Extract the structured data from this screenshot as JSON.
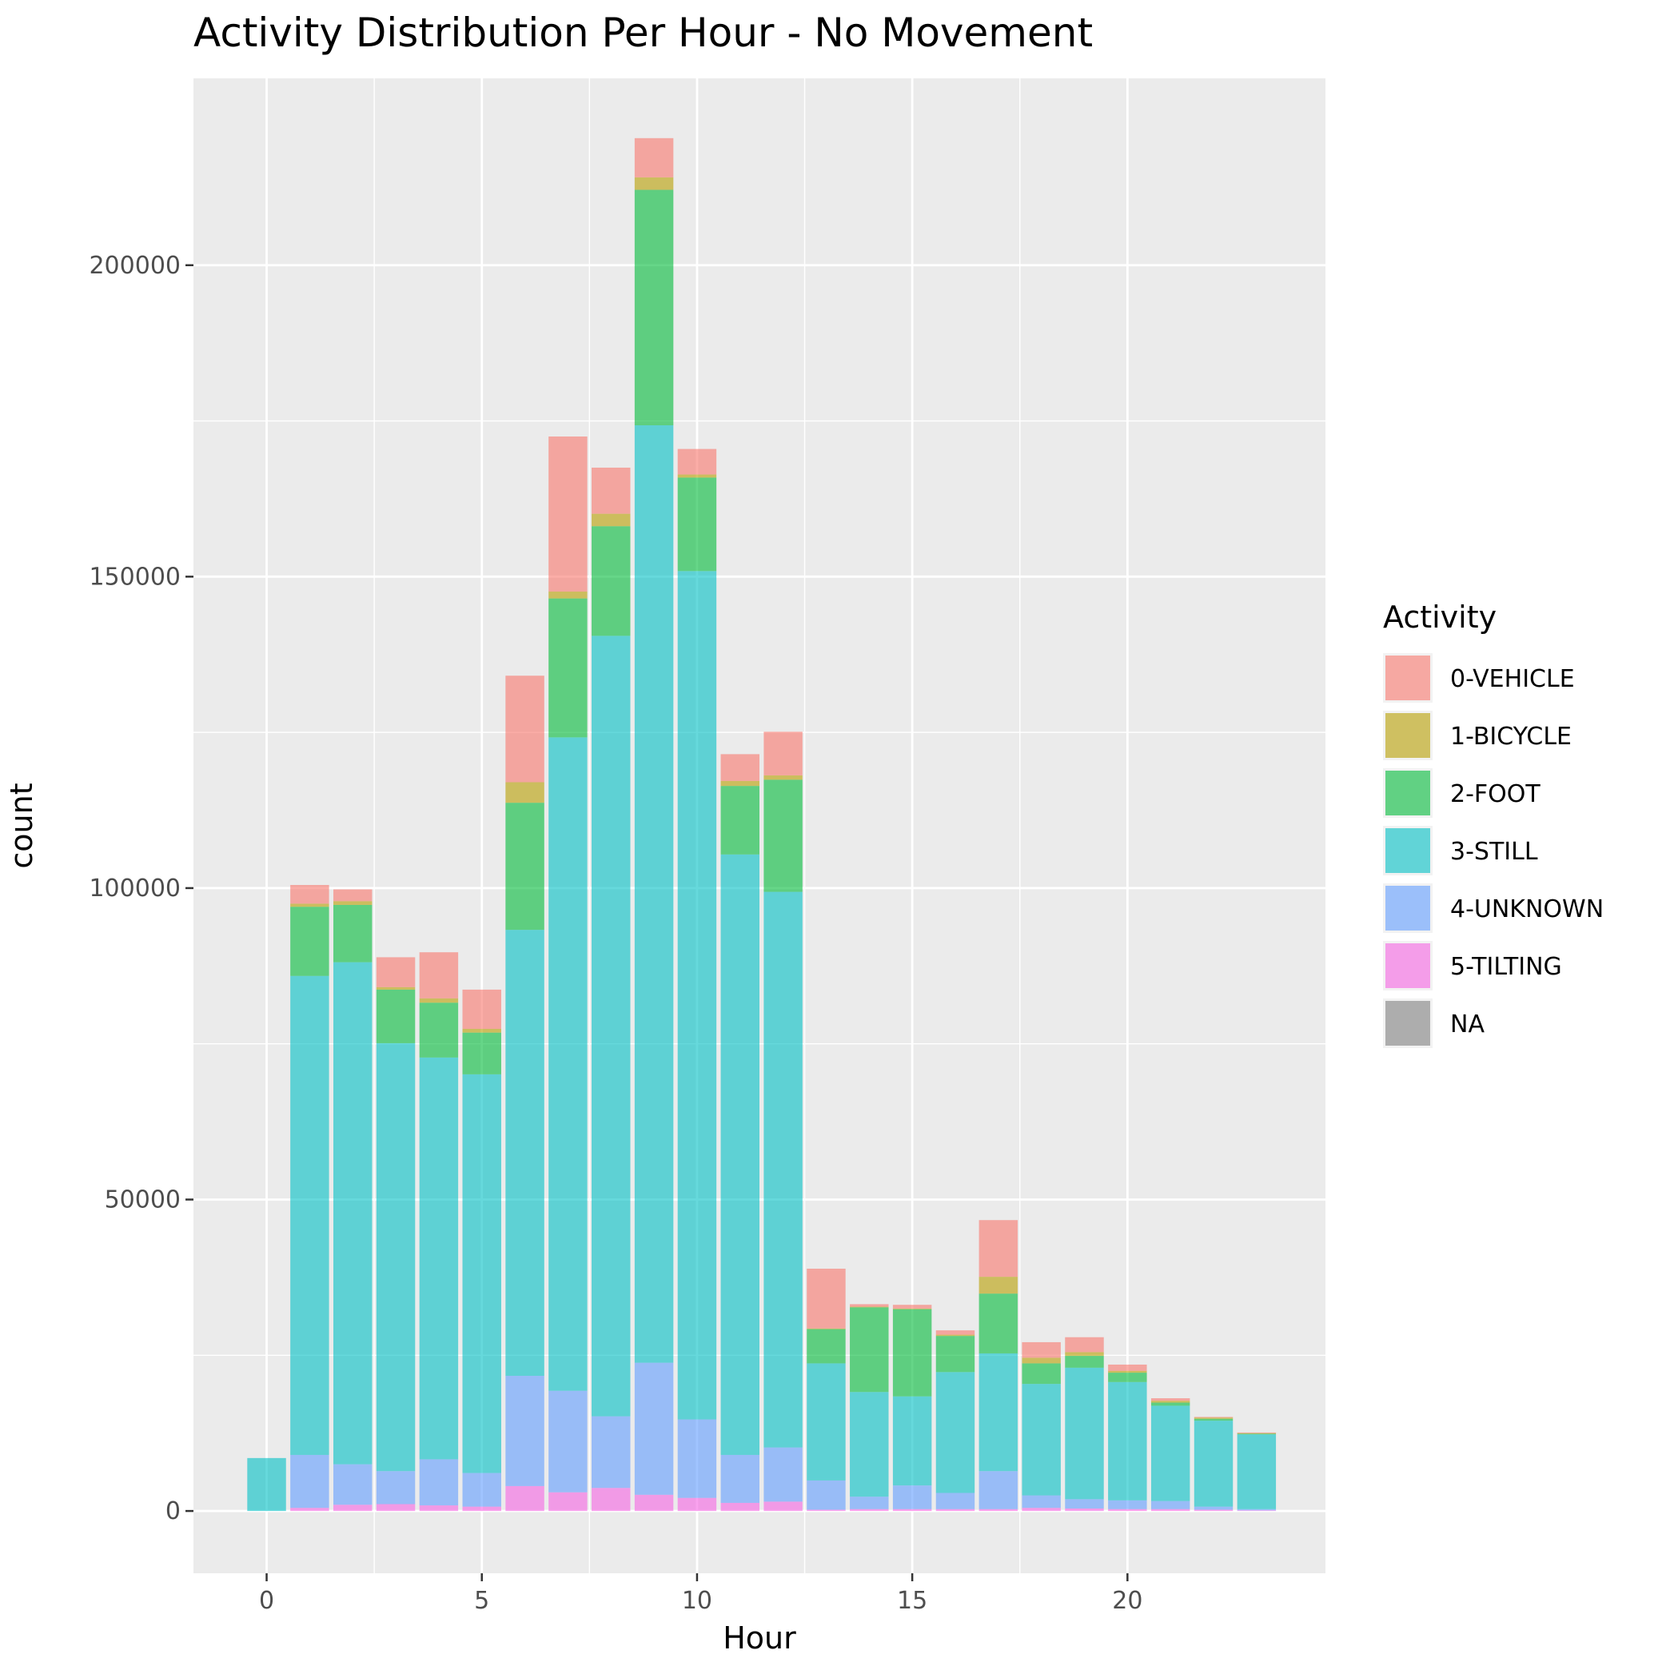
{
  "chart_data": {
    "type": "bar",
    "stacked": true,
    "title": "Activity Distribution Per Hour - No Movement",
    "xlabel": "Hour",
    "ylabel": "count",
    "xlim": [
      -1.7,
      24.6
    ],
    "ylim": [
      -10000,
      230000
    ],
    "xticks": [
      0,
      5,
      10,
      15,
      20
    ],
    "yticks": [
      0,
      50000,
      100000,
      150000,
      200000
    ],
    "xtick_labels": [
      "0",
      "5",
      "10",
      "15",
      "20"
    ],
    "ytick_labels": [
      "0",
      "50000",
      "100000",
      "150000",
      "200000"
    ],
    "grid": true,
    "legend": {
      "title": "Activity",
      "position": "right",
      "entries": [
        "0-VEHICLE",
        "1-BICYCLE",
        "2-FOOT",
        "3-STILL",
        "4-UNKNOWN",
        "5-TILTING",
        "NA"
      ]
    },
    "colors": {
      "0-VEHICLE": "#F8766D",
      "1-BICYCLE": "#B79F00",
      "2-FOOT": "#00BA38",
      "3-STILL": "#00BFC4",
      "4-UNKNOWN": "#619CFF",
      "5-TILTING": "#F564E3",
      "NA": "#7F7F7F"
    },
    "bar_opacity": 0.6,
    "hours": [
      0,
      1,
      2,
      3,
      4,
      5,
      6,
      7,
      8,
      9,
      10,
      11,
      12,
      13,
      14,
      15,
      16,
      17,
      18,
      19,
      20,
      21,
      22,
      23
    ],
    "stack_order": [
      "5-TILTING",
      "4-UNKNOWN",
      "3-STILL",
      "2-FOOT",
      "1-BICYCLE",
      "0-VEHICLE",
      "NA"
    ],
    "series": [
      {
        "name": "5-TILTING",
        "values": [
          0,
          500,
          1000,
          1100,
          900,
          700,
          4000,
          3000,
          3700,
          2600,
          2100,
          1300,
          1500,
          200,
          300,
          300,
          300,
          300,
          500,
          400,
          300,
          300,
          200,
          100
        ]
      },
      {
        "name": "4-UNKNOWN",
        "values": [
          0,
          8500,
          6500,
          5300,
          7400,
          5400,
          17700,
          16300,
          11500,
          21200,
          12600,
          7700,
          8700,
          4700,
          2000,
          3800,
          2600,
          6100,
          2000,
          1500,
          1400,
          1300,
          500,
          200
        ]
      },
      {
        "name": "3-STILL",
        "values": [
          8500,
          76900,
          80600,
          68700,
          64500,
          64000,
          71600,
          104900,
          125300,
          150500,
          136200,
          96400,
          89200,
          18800,
          16800,
          14300,
          19400,
          18900,
          17900,
          21100,
          19000,
          15300,
          13800,
          12000
        ]
      },
      {
        "name": "2-FOOT",
        "values": [
          0,
          11100,
          9200,
          8600,
          8800,
          6700,
          20400,
          22300,
          17600,
          37800,
          15000,
          11000,
          18000,
          5500,
          13600,
          14000,
          5800,
          9600,
          3300,
          1900,
          1500,
          500,
          300,
          100
        ]
      },
      {
        "name": "1-BICYCLE",
        "values": [
          0,
          500,
          600,
          400,
          700,
          600,
          3300,
          1100,
          2000,
          2000,
          500,
          800,
          700,
          100,
          100,
          100,
          200,
          2700,
          900,
          600,
          300,
          300,
          200,
          100
        ]
      },
      {
        "name": "0-VEHICLE",
        "values": [
          0,
          3000,
          1900,
          4800,
          7400,
          6300,
          17100,
          24900,
          7400,
          6300,
          4100,
          4300,
          7000,
          9600,
          400,
          600,
          700,
          9100,
          2500,
          2400,
          1000,
          400,
          100,
          100
        ]
      },
      {
        "name": "NA",
        "values": [
          0,
          0,
          0,
          0,
          0,
          0,
          0,
          0,
          0,
          0,
          0,
          0,
          0,
          0,
          0,
          0,
          0,
          0,
          0,
          0,
          0,
          0,
          0,
          0
        ]
      }
    ]
  }
}
